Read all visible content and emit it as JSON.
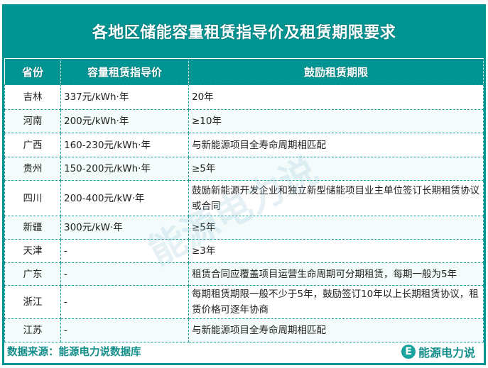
{
  "title": "各地区储能容量租赁指导价及租赁期限要求",
  "headers": [
    "省份",
    "容量租赁指导价",
    "鼓励租赁期限"
  ],
  "rows": [
    {
      "province": "吉林",
      "price": "337元/kWh·年",
      "term": "20年"
    },
    {
      "province": "河南",
      "price": "200元/kWh·年",
      "term": "≥10年"
    },
    {
      "province": "广西",
      "price": "160-230元/kWh·年",
      "term": "与新能源项目全寿命周期相匹配"
    },
    {
      "province": "贵州",
      "price": "150-200元/kWh·年",
      "term": "≥5年"
    },
    {
      "province": "四川",
      "price": "200-400元/kW·年",
      "term": "鼓励新能源开发企业和独立新型储能项目业主单位签订长期租赁协议或合同"
    },
    {
      "province": "新疆",
      "price": "300元/kW·年",
      "term": "≥5年"
    },
    {
      "province": "天津",
      "price": "-",
      "term": "≥3年"
    },
    {
      "province": "广东",
      "price": "-",
      "term": "租赁合同应覆盖项目运营生命周期可分期租赁，每期一般为5年"
    },
    {
      "province": "浙江",
      "price": "-",
      "term": "每期租赁期限一般不少于5年，鼓励签订10年以上长期租赁协议，租赁价格可逐年协商"
    },
    {
      "province": "江苏",
      "price": "-",
      "term": "与新能源项目全寿命周期相匹配"
    }
  ],
  "footer": {
    "source": "数据来源：能源电力说数据库",
    "brand": "能源电力说",
    "logo_letter": "E"
  },
  "watermark": "能源电力说",
  "colors": {
    "accent": "#009593",
    "alt_row": "#f3fbfb",
    "footer_text": "#138e8a"
  }
}
